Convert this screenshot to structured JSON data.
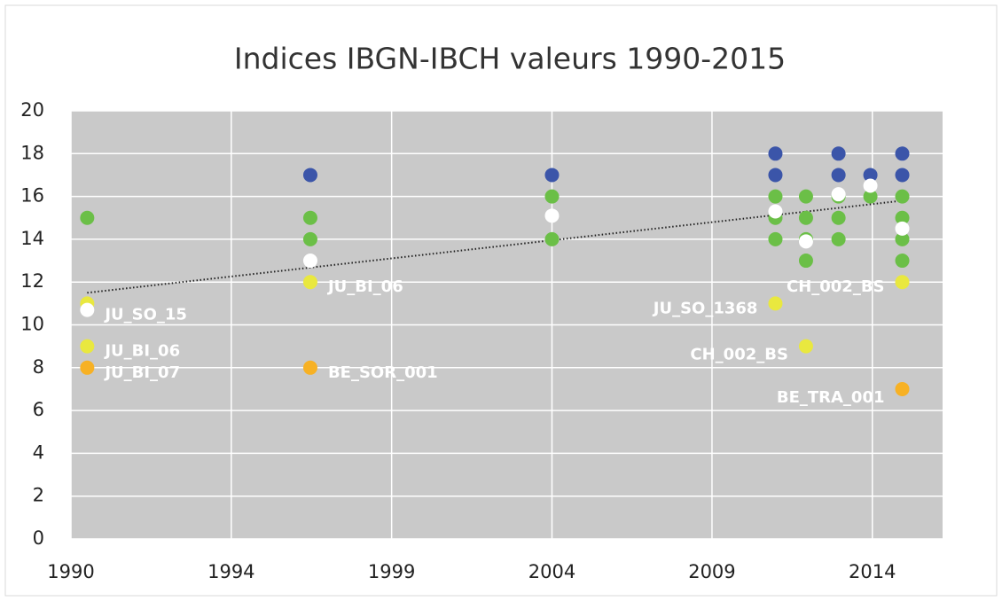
{
  "chart_data": {
    "type": "scatter",
    "title": "Indices IBGN-IBCH valeurs 1990-2015",
    "grid": true,
    "plot_background": "#c9c9c9",
    "xlim": [
      1990,
      2016.8
    ],
    "ylim": [
      0,
      20
    ],
    "xticks": [
      1990,
      {
        "value": 1994.93,
        "label": "1994"
      },
      {
        "value": 1999.86,
        "label": "1999"
      },
      {
        "value": 2004.79,
        "label": "2004"
      },
      {
        "value": 2009.71,
        "label": "2009"
      },
      {
        "value": 2014.64,
        "label": "2014"
      }
    ],
    "yticks": [
      0,
      2,
      4,
      6,
      8,
      10,
      12,
      14,
      16,
      18,
      20
    ],
    "series": [
      {
        "color": "#3b55a9",
        "x": [
          1997.36,
          2004.79,
          2011.66,
          2011.66,
          2013.6,
          2013.6,
          2014.58,
          2015.56,
          2015.56
        ],
        "values": [
          17,
          17,
          18,
          17,
          18,
          17,
          17,
          18,
          17
        ]
      },
      {
        "color": "#6bbf47",
        "x": [
          1990.5,
          1997.36,
          1997.36,
          2004.79,
          2004.79,
          2011.66,
          2011.66,
          2011.66,
          2012.6,
          2012.6,
          2012.6,
          2012.6,
          2013.6,
          2013.6,
          2013.6,
          2014.58,
          2015.56,
          2015.56,
          2015.56,
          2015.56
        ],
        "values": [
          15,
          15,
          14,
          16,
          14,
          16,
          15,
          14,
          16,
          15,
          14,
          13,
          16,
          15,
          14,
          16,
          16,
          15,
          14,
          13
        ]
      },
      {
        "color": "#e9e83f",
        "x": [
          1990.5,
          1990.5,
          1997.36,
          2011.66,
          2012.6,
          2015.56
        ],
        "values": [
          11,
          9,
          12,
          11,
          9,
          12
        ],
        "point_labels": [
          null,
          "JU_BI_06",
          "JU_BI_06",
          "JU_SO_1368",
          "CH_002_BS",
          "CH_002_BS"
        ]
      },
      {
        "color": "#ffffff",
        "x": [
          1990.5,
          1997.36,
          2004.79,
          2011.66,
          2012.6,
          2013.6,
          2014.58,
          2015.56
        ],
        "values": [
          10.7,
          13,
          15.1,
          15.3,
          13.9,
          16.1,
          16.5,
          14.5
        ],
        "point_labels": [
          "JU_SO_15",
          null,
          null,
          null,
          null,
          null,
          null,
          null
        ]
      },
      {
        "color": "#f7b124",
        "x": [
          1990.5,
          1997.36,
          2015.56
        ],
        "values": [
          8,
          8,
          7
        ],
        "point_labels": [
          "JU_BI_07",
          "BE_SOR_001",
          "BE_TRA_001"
        ]
      }
    ],
    "trendline": {
      "color": "#222222",
      "x": [
        1990.5,
        2015.56
      ],
      "values": [
        11.5,
        15.8
      ]
    }
  }
}
